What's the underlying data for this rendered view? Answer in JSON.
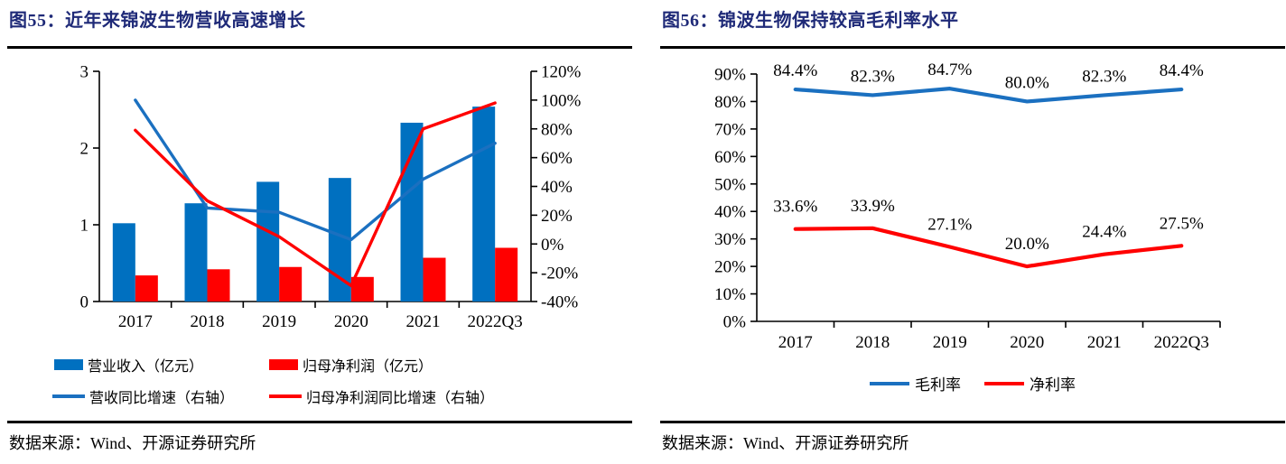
{
  "colors": {
    "title_navy": "#1f2a78",
    "bar_blue": "#0070c0",
    "bar_red": "#ff0000",
    "line_blue": "#1b70c0",
    "line_red": "#ff0000",
    "axis_black": "#000000"
  },
  "figures": [
    {
      "title": "图55：近年来锦波生物营收高速增长",
      "source": "数据来源：Wind、开源证券研究所"
    },
    {
      "title": "图56：锦波生物保持较高毛利率水平",
      "source": "数据来源：Wind、开源证券研究所"
    }
  ],
  "chart_data": [
    {
      "type": "bar",
      "subtype": "bar-line-combo",
      "title": "近年来锦波生物营收高速增长",
      "figure_label": "图55",
      "categories": [
        "2017",
        "2018",
        "2019",
        "2020",
        "2021",
        "2022Q3"
      ],
      "series": [
        {
          "name": "营业收入（亿元）",
          "kind": "bar",
          "axis": "left",
          "color": "#0070c0",
          "values": [
            1.02,
            1.28,
            1.56,
            1.61,
            2.33,
            2.54
          ]
        },
        {
          "name": "归母净利润（亿元）",
          "kind": "bar",
          "axis": "left",
          "color": "#ff0000",
          "values": [
            0.34,
            0.42,
            0.45,
            0.32,
            0.57,
            0.7
          ]
        },
        {
          "name": "营收同比增速（右轴）",
          "kind": "line",
          "axis": "right",
          "color": "#1b70c0",
          "values": [
            100,
            25,
            22,
            3,
            45,
            70
          ]
        },
        {
          "name": "归母净利润同比增速（右轴）",
          "kind": "line",
          "axis": "right",
          "color": "#ff0000",
          "values": [
            79,
            30,
            5,
            -29,
            80,
            98
          ]
        }
      ],
      "left_axis": {
        "min": 0,
        "max": 3,
        "step": 1,
        "unit": ""
      },
      "right_axis": {
        "min": -40,
        "max": 120,
        "step": 20,
        "unit": "%"
      },
      "grid": false,
      "legend_position": "bottom"
    },
    {
      "type": "line",
      "title": "锦波生物保持较高毛利率水平",
      "figure_label": "图56",
      "categories": [
        "2017",
        "2018",
        "2019",
        "2020",
        "2021",
        "2022Q3"
      ],
      "series": [
        {
          "name": "毛利率",
          "kind": "line",
          "color": "#1b70c0",
          "values": [
            84.4,
            82.3,
            84.7,
            80.0,
            82.3,
            84.4
          ],
          "point_labels": [
            "84.4%",
            "82.3%",
            "84.7%",
            "80.0%",
            "82.3%",
            "84.4%"
          ]
        },
        {
          "name": "净利率",
          "kind": "line",
          "color": "#ff0000",
          "values": [
            33.6,
            33.9,
            27.1,
            20.0,
            24.4,
            27.5
          ],
          "point_labels": [
            "33.6%",
            "33.9%",
            "27.1%",
            "20.0%",
            "24.4%",
            "27.5%"
          ]
        }
      ],
      "y_axis": {
        "min": 0,
        "max": 90,
        "step": 10,
        "unit": "%"
      },
      "grid": false,
      "legend_position": "bottom"
    }
  ]
}
